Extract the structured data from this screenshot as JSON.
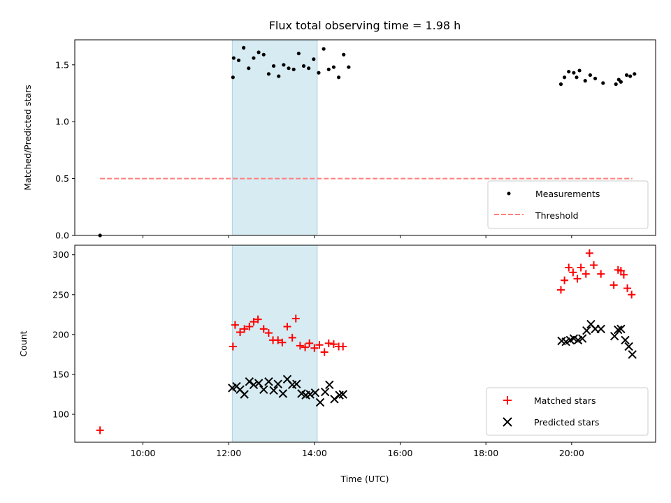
{
  "chart_data": {
    "type": "scatter",
    "title": "Flux total observing time = 1.98 h",
    "xlabel": "Time (UTC)",
    "x_tick_labels": [
      "10:00",
      "12:00",
      "14:00",
      "16:00",
      "18:00",
      "20:00"
    ],
    "shaded_interval": {
      "start": "12:05",
      "end": "14:04",
      "color": "#add8e6"
    },
    "panels": [
      {
        "ylabel": "Matched/Predicted stars",
        "ylim": [
          0,
          1.72
        ],
        "y_ticks": [
          0.0,
          0.5,
          1.0,
          1.5
        ],
        "y_tick_labels": [
          "0.0",
          "0.5",
          "1.0",
          "1.5"
        ],
        "legend": {
          "position": "lower right",
          "entries": [
            "Measurements",
            "Threshold"
          ]
        },
        "series": [
          {
            "name": "Measurements",
            "marker": "dot",
            "color": "#000000",
            "points": [
              [
                "09:00",
                0.0
              ],
              [
                "12:06",
                1.39
              ],
              [
                "12:07",
                1.56
              ],
              [
                "12:14",
                1.54
              ],
              [
                "12:21",
                1.65
              ],
              [
                "12:28",
                1.47
              ],
              [
                "12:35",
                1.56
              ],
              [
                "12:42",
                1.61
              ],
              [
                "12:49",
                1.59
              ],
              [
                "12:56",
                1.42
              ],
              [
                "13:03",
                1.49
              ],
              [
                "13:10",
                1.4
              ],
              [
                "13:17",
                1.5
              ],
              [
                "13:24",
                1.47
              ],
              [
                "13:31",
                1.46
              ],
              [
                "13:38",
                1.6
              ],
              [
                "13:45",
                1.49
              ],
              [
                "13:52",
                1.47
              ],
              [
                "13:59",
                1.55
              ],
              [
                "14:06",
                1.43
              ],
              [
                "14:13",
                1.64
              ],
              [
                "14:20",
                1.46
              ],
              [
                "14:27",
                1.48
              ],
              [
                "14:34",
                1.39
              ],
              [
                "14:41",
                1.59
              ],
              [
                "14:48",
                1.48
              ],
              [
                "19:45",
                1.33
              ],
              [
                "19:50",
                1.39
              ],
              [
                "19:56",
                1.44
              ],
              [
                "20:03",
                1.43
              ],
              [
                "20:07",
                1.39
              ],
              [
                "20:11",
                1.45
              ],
              [
                "20:19",
                1.36
              ],
              [
                "20:26",
                1.41
              ],
              [
                "20:33",
                1.38
              ],
              [
                "20:44",
                1.34
              ],
              [
                "21:02",
                1.33
              ],
              [
                "21:06",
                1.37
              ],
              [
                "21:09",
                1.35
              ],
              [
                "21:17",
                1.41
              ],
              [
                "21:22",
                1.4
              ],
              [
                "21:28",
                1.42
              ]
            ]
          },
          {
            "name": "Threshold",
            "style": "dashed-line",
            "color": "#ff7f7f",
            "points": [
              [
                "09:00",
                0.5
              ],
              [
                "21:25",
                0.5
              ]
            ]
          }
        ]
      },
      {
        "ylabel": "Count",
        "ylim": [
          65,
          312
        ],
        "y_ticks": [
          100,
          150,
          200,
          250,
          300
        ],
        "y_tick_labels": [
          "100",
          "150",
          "200",
          "250",
          "300"
        ],
        "legend": {
          "position": "lower right",
          "entries": [
            "Matched stars",
            "Predicted stars"
          ]
        },
        "series": [
          {
            "name": "Matched stars",
            "marker": "plus",
            "color": "#ff0000",
            "points": [
              [
                "09:00",
                80
              ],
              [
                "12:06",
                185
              ],
              [
                "12:09",
                212
              ],
              [
                "12:16",
                203
              ],
              [
                "12:22",
                207
              ],
              [
                "12:29",
                210
              ],
              [
                "12:35",
                216
              ],
              [
                "12:41",
                219
              ],
              [
                "12:49",
                207
              ],
              [
                "12:56",
                202
              ],
              [
                "13:02",
                193
              ],
              [
                "13:09",
                193
              ],
              [
                "13:15",
                190
              ],
              [
                "13:22",
                210
              ],
              [
                "13:29",
                196
              ],
              [
                "13:34",
                220
              ],
              [
                "13:40",
                186
              ],
              [
                "13:47",
                184
              ],
              [
                "13:53",
                189
              ],
              [
                "14:00",
                183
              ],
              [
                "14:07",
                187
              ],
              [
                "14:14",
                178
              ],
              [
                "14:20",
                189
              ],
              [
                "14:27",
                188
              ],
              [
                "14:34",
                185
              ],
              [
                "14:40",
                185
              ],
              [
                "19:45",
                256
              ],
              [
                "19:50",
                268
              ],
              [
                "19:56",
                284
              ],
              [
                "20:02",
                278
              ],
              [
                "20:08",
                270
              ],
              [
                "20:13",
                284
              ],
              [
                "20:20",
                276
              ],
              [
                "20:25",
                302
              ],
              [
                "20:31",
                287
              ],
              [
                "20:41",
                276
              ],
              [
                "20:59",
                262
              ],
              [
                "21:05",
                281
              ],
              [
                "21:09",
                280
              ],
              [
                "21:13",
                275
              ],
              [
                "21:18",
                258
              ],
              [
                "21:24",
                250
              ]
            ]
          },
          {
            "name": "Predicted stars",
            "marker": "x",
            "color": "#000000",
            "points": [
              [
                "12:05",
                133
              ],
              [
                "12:11",
                135
              ],
              [
                "12:16",
                131
              ],
              [
                "12:22",
                125
              ],
              [
                "12:29",
                141
              ],
              [
                "12:35",
                137
              ],
              [
                "12:42",
                139
              ],
              [
                "12:49",
                131
              ],
              [
                "12:56",
                141
              ],
              [
                "13:03",
                130
              ],
              [
                "13:09",
                138
              ],
              [
                "13:16",
                126
              ],
              [
                "13:22",
                144
              ],
              [
                "13:29",
                137
              ],
              [
                "13:35",
                138
              ],
              [
                "13:42",
                126
              ],
              [
                "13:48",
                124
              ],
              [
                "13:54",
                125
              ],
              [
                "14:01",
                127
              ],
              [
                "14:08",
                115
              ],
              [
                "14:15",
                128
              ],
              [
                "14:21",
                137
              ],
              [
                "14:28",
                119
              ],
              [
                "14:35",
                124
              ],
              [
                "14:40",
                125
              ],
              [
                "19:46",
                192
              ],
              [
                "19:52",
                191
              ],
              [
                "19:58",
                193
              ],
              [
                "20:03",
                195
              ],
              [
                "20:09",
                193
              ],
              [
                "20:15",
                195
              ],
              [
                "20:21",
                205
              ],
              [
                "20:27",
                213
              ],
              [
                "20:33",
                207
              ],
              [
                "20:41",
                207
              ],
              [
                "21:00",
                198
              ],
              [
                "21:05",
                206
              ],
              [
                "21:09",
                207
              ],
              [
                "21:15",
                193
              ],
              [
                "21:20",
                185
              ],
              [
                "21:25",
                175
              ]
            ]
          }
        ]
      }
    ]
  }
}
